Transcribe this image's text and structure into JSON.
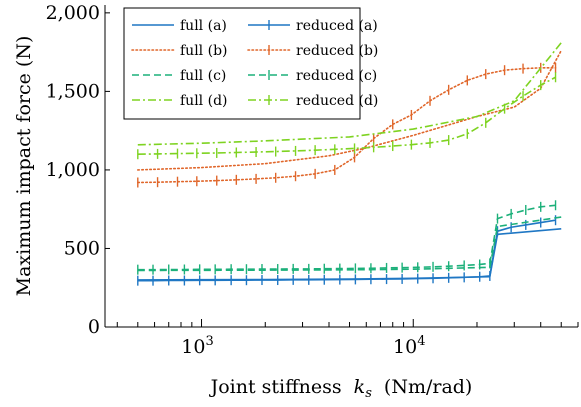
{
  "chart_data": {
    "type": "line",
    "title": "",
    "xlabel": "Joint stiffness",
    "xlabel_symbol": "k",
    "xlabel_subscript": "s",
    "xlabel_unit": "(Nm/rad)",
    "ylabel": "Maximum impact force (N)",
    "xscale": "log",
    "xlim": [
      350,
      60000
    ],
    "ylim": [
      0,
      2050
    ],
    "x_tick_labels": [
      {
        "value": 1000,
        "base": "10",
        "exp": "3"
      },
      {
        "value": 10000,
        "base": "10",
        "exp": "4"
      }
    ],
    "y_ticks": [
      {
        "value": 0,
        "label": "0"
      },
      {
        "value": 500,
        "label": "500"
      },
      {
        "value": 1000,
        "label": "1,000"
      },
      {
        "value": 1500,
        "label": "1,500"
      },
      {
        "value": 2000,
        "label": "2,000"
      }
    ],
    "grid": false,
    "legend_position": "top-left",
    "series": [
      {
        "name": "full (a)",
        "color": "#1f77c4",
        "style": "solid",
        "marker": "none",
        "x": [
          500,
          1000,
          2000,
          5000,
          10000,
          23000,
          25000,
          50000
        ],
        "y": [
          300,
          301,
          302,
          305,
          310,
          320,
          590,
          625
        ]
      },
      {
        "name": "reduced (a)",
        "color": "#1f77c4",
        "style": "solid",
        "marker": "bar",
        "x": [
          500,
          590,
          700,
          830,
          980,
          1160,
          1380,
          1630,
          1930,
          2290,
          2710,
          3210,
          3800,
          4500,
          5330,
          6310,
          7480,
          8860,
          10500,
          12400,
          14700,
          17400,
          20600,
          23000,
          25000,
          29000,
          34000,
          40000,
          47000
        ],
        "y": [
          295,
          295,
          296,
          296,
          297,
          297,
          298,
          298,
          299,
          299,
          300,
          300,
          301,
          302,
          303,
          304,
          305,
          306,
          308,
          310,
          313,
          316,
          320,
          325,
          610,
          635,
          650,
          665,
          680
        ]
      },
      {
        "name": "full (b)",
        "color": "#e0662a",
        "style": "dotted",
        "marker": "none",
        "x": [
          500,
          1000,
          2000,
          4000,
          6000,
          10000,
          20000,
          30000,
          40000,
          50000
        ],
        "y": [
          1000,
          1015,
          1040,
          1090,
          1140,
          1220,
          1340,
          1400,
          1520,
          1760
        ]
      },
      {
        "name": "reduced (b)",
        "color": "#e0662a",
        "style": "dotted",
        "marker": "bar",
        "x": [
          500,
          620,
          770,
          950,
          1180,
          1460,
          1810,
          2240,
          2780,
          3440,
          4260,
          5280,
          6500,
          8000,
          9800,
          12000,
          14700,
          18000,
          22000,
          27000,
          33000,
          40000,
          47000
        ],
        "y": [
          920,
          922,
          925,
          928,
          932,
          937,
          943,
          950,
          960,
          975,
          1000,
          1080,
          1200,
          1290,
          1350,
          1440,
          1510,
          1570,
          1610,
          1635,
          1645,
          1650,
          1650
        ]
      },
      {
        "name": "full (c)",
        "color": "#1cb07a",
        "style": "dashed",
        "marker": "none",
        "x": [
          500,
          1000,
          2000,
          5000,
          10000,
          23000,
          25000,
          50000
        ],
        "y": [
          360,
          361,
          362,
          364,
          368,
          380,
          640,
          700
        ]
      },
      {
        "name": "reduced (c)",
        "color": "#1cb07a",
        "style": "dashed",
        "marker": "bar",
        "x": [
          500,
          590,
          700,
          830,
          980,
          1160,
          1380,
          1630,
          1930,
          2290,
          2710,
          3210,
          3800,
          4500,
          5330,
          6310,
          7480,
          8860,
          10500,
          12400,
          14700,
          17400,
          20600,
          23000,
          25000,
          29000,
          34000,
          40000,
          47000
        ],
        "y": [
          365,
          365,
          366,
          366,
          367,
          367,
          368,
          368,
          369,
          369,
          370,
          370,
          371,
          372,
          373,
          374,
          376,
          378,
          380,
          383,
          387,
          392,
          398,
          405,
          690,
          720,
          745,
          765,
          775
        ]
      },
      {
        "name": "full (d)",
        "color": "#7ed321",
        "style": "dashdot",
        "marker": "none",
        "x": [
          500,
          1000,
          2000,
          5000,
          10000,
          20000,
          30000,
          50000
        ],
        "y": [
          1160,
          1170,
          1185,
          1210,
          1260,
          1340,
          1440,
          1810
        ]
      },
      {
        "name": "reduced (d)",
        "color": "#7ed321",
        "style": "dashdot",
        "marker": "bar",
        "x": [
          500,
          620,
          770,
          950,
          1180,
          1460,
          1810,
          2240,
          2780,
          3440,
          4260,
          5280,
          6500,
          8000,
          9800,
          12000,
          14700,
          18000,
          22000,
          27000,
          33000,
          40000,
          47000
        ],
        "y": [
          1100,
          1102,
          1104,
          1106,
          1108,
          1111,
          1114,
          1117,
          1121,
          1126,
          1131,
          1137,
          1144,
          1152,
          1161,
          1172,
          1190,
          1230,
          1300,
          1390,
          1470,
          1540,
          1590
        ]
      }
    ]
  }
}
